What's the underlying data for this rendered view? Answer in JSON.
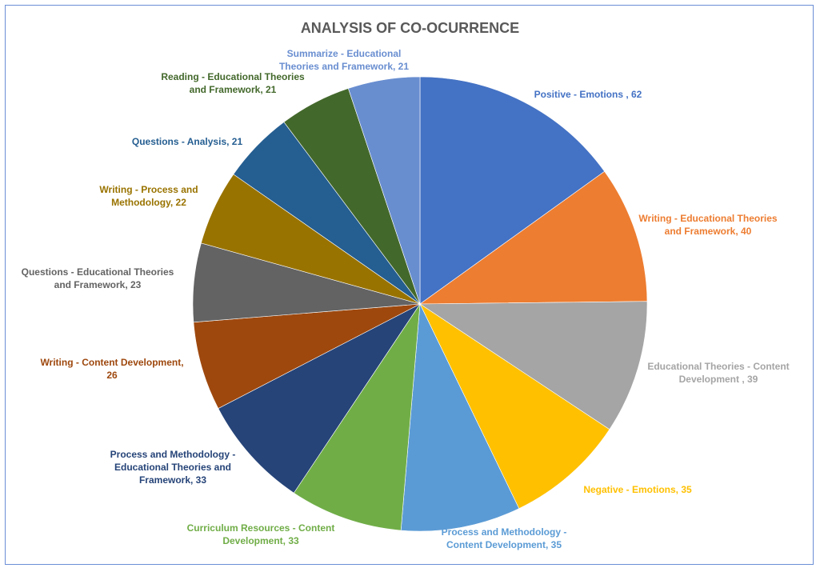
{
  "chart_data": {
    "type": "pie",
    "title": "ANALYSIS OF CO-OCURRENCE",
    "slices": [
      {
        "category": "Positive - Emotions",
        "value": 62,
        "color": "#4472C4",
        "label_lines": [
          "Positive - Emotions , 62"
        ]
      },
      {
        "category": "Writing - Educational Theories and Framework",
        "value": 40,
        "color": "#ED7D31",
        "label_lines": [
          "Writing - Educational Theories",
          "and Framework, 40"
        ]
      },
      {
        "category": "Educational Theories - Content Development",
        "value": 39,
        "color": "#A5A5A5",
        "label_lines": [
          "Educational Theories - Content",
          "Development , 39"
        ]
      },
      {
        "category": "Negative - Emotions",
        "value": 35,
        "color": "#FFC000",
        "label_lines": [
          "Negative - Emotions, 35"
        ]
      },
      {
        "category": "Process and Methodology - Content Development",
        "value": 35,
        "color": "#5B9BD5",
        "label_lines": [
          "Process and Methodology -",
          "Content Development, 35"
        ]
      },
      {
        "category": "Curriculum Resources - Content Development",
        "value": 33,
        "color": "#70AD47",
        "label_lines": [
          "Curriculum Resources - Content",
          "Development, 33"
        ]
      },
      {
        "category": "Process and Methodology - Educational Theories and Framework",
        "value": 33,
        "color": "#264478",
        "label_lines": [
          "Process and Methodology -",
          "Educational Theories and",
          "Framework, 33"
        ]
      },
      {
        "category": "Writing - Content Development",
        "value": 26,
        "color": "#9E480E",
        "label_lines": [
          "Writing - Content Development,",
          "26"
        ]
      },
      {
        "category": "Questions - Educational Theories and Framework",
        "value": 23,
        "color": "#636363",
        "label_lines": [
          "Questions - Educational Theories",
          "and Framework, 23"
        ]
      },
      {
        "category": "Writing - Process and Methodology",
        "value": 22,
        "color": "#997300",
        "label_lines": [
          "Writing - Process and",
          "Methodology, 22"
        ]
      },
      {
        "category": "Questions - Analysis",
        "value": 21,
        "color": "#255E91",
        "label_lines": [
          "Questions - Analysis, 21"
        ]
      },
      {
        "category": "Reading - Educational Theories and Framework",
        "value": 21,
        "color": "#43682B",
        "label_lines": [
          "Reading - Educational Theories",
          "and Framework, 21"
        ]
      },
      {
        "category": "Summarize - Educational Theories and Framework",
        "value": 21,
        "color": "#698ED0",
        "label_lines": [
          "Summarize - Educational",
          "Theories and Framework, 21"
        ]
      }
    ]
  }
}
